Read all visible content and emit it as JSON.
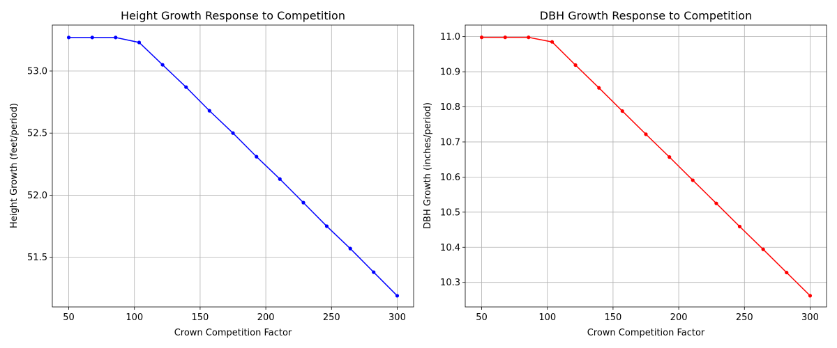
{
  "chart_data": [
    {
      "type": "line",
      "title": "Height Growth Response to Competition",
      "xlabel": "Crown Competition Factor",
      "ylabel": "Height Growth (feet/period)",
      "xlim": [
        37.5,
        312.5
      ],
      "ylim": [
        51.1,
        53.37
      ],
      "xticks": [
        50,
        100,
        150,
        200,
        250,
        300
      ],
      "yticks": [
        51.5,
        52.0,
        52.5,
        53.0
      ],
      "grid": true,
      "color": "#0000ff",
      "series": [
        {
          "x": [
            50,
            67.9,
            85.7,
            103.6,
            121.4,
            139.3,
            157.1,
            175.0,
            192.9,
            210.7,
            228.6,
            246.4,
            264.3,
            282.1,
            300
          ],
          "values": [
            53.27,
            53.27,
            53.27,
            53.23,
            53.05,
            52.87,
            52.68,
            52.5,
            52.31,
            52.13,
            51.94,
            51.75,
            51.57,
            51.38,
            51.19
          ]
        }
      ]
    },
    {
      "type": "line",
      "title": "DBH Growth Response to Competition",
      "xlabel": "Crown Competition Factor",
      "ylabel": "DBH Growth (inches/period)",
      "xlim": [
        37.5,
        312.5
      ],
      "ylim": [
        10.23,
        11.033
      ],
      "xticks": [
        50,
        100,
        150,
        200,
        250,
        300
      ],
      "yticks": [
        10.3,
        10.4,
        10.5,
        10.6,
        10.7,
        10.8,
        10.9,
        11.0
      ],
      "grid": true,
      "color": "#ff0000",
      "series": [
        {
          "x": [
            50,
            67.9,
            85.7,
            103.6,
            121.4,
            139.3,
            157.1,
            175.0,
            192.9,
            210.7,
            228.6,
            246.4,
            264.3,
            282.1,
            300
          ],
          "values": [
            10.998,
            10.998,
            10.998,
            10.985,
            10.919,
            10.854,
            10.788,
            10.722,
            10.657,
            10.591,
            10.525,
            10.459,
            10.394,
            10.328,
            10.262
          ]
        }
      ]
    }
  ]
}
